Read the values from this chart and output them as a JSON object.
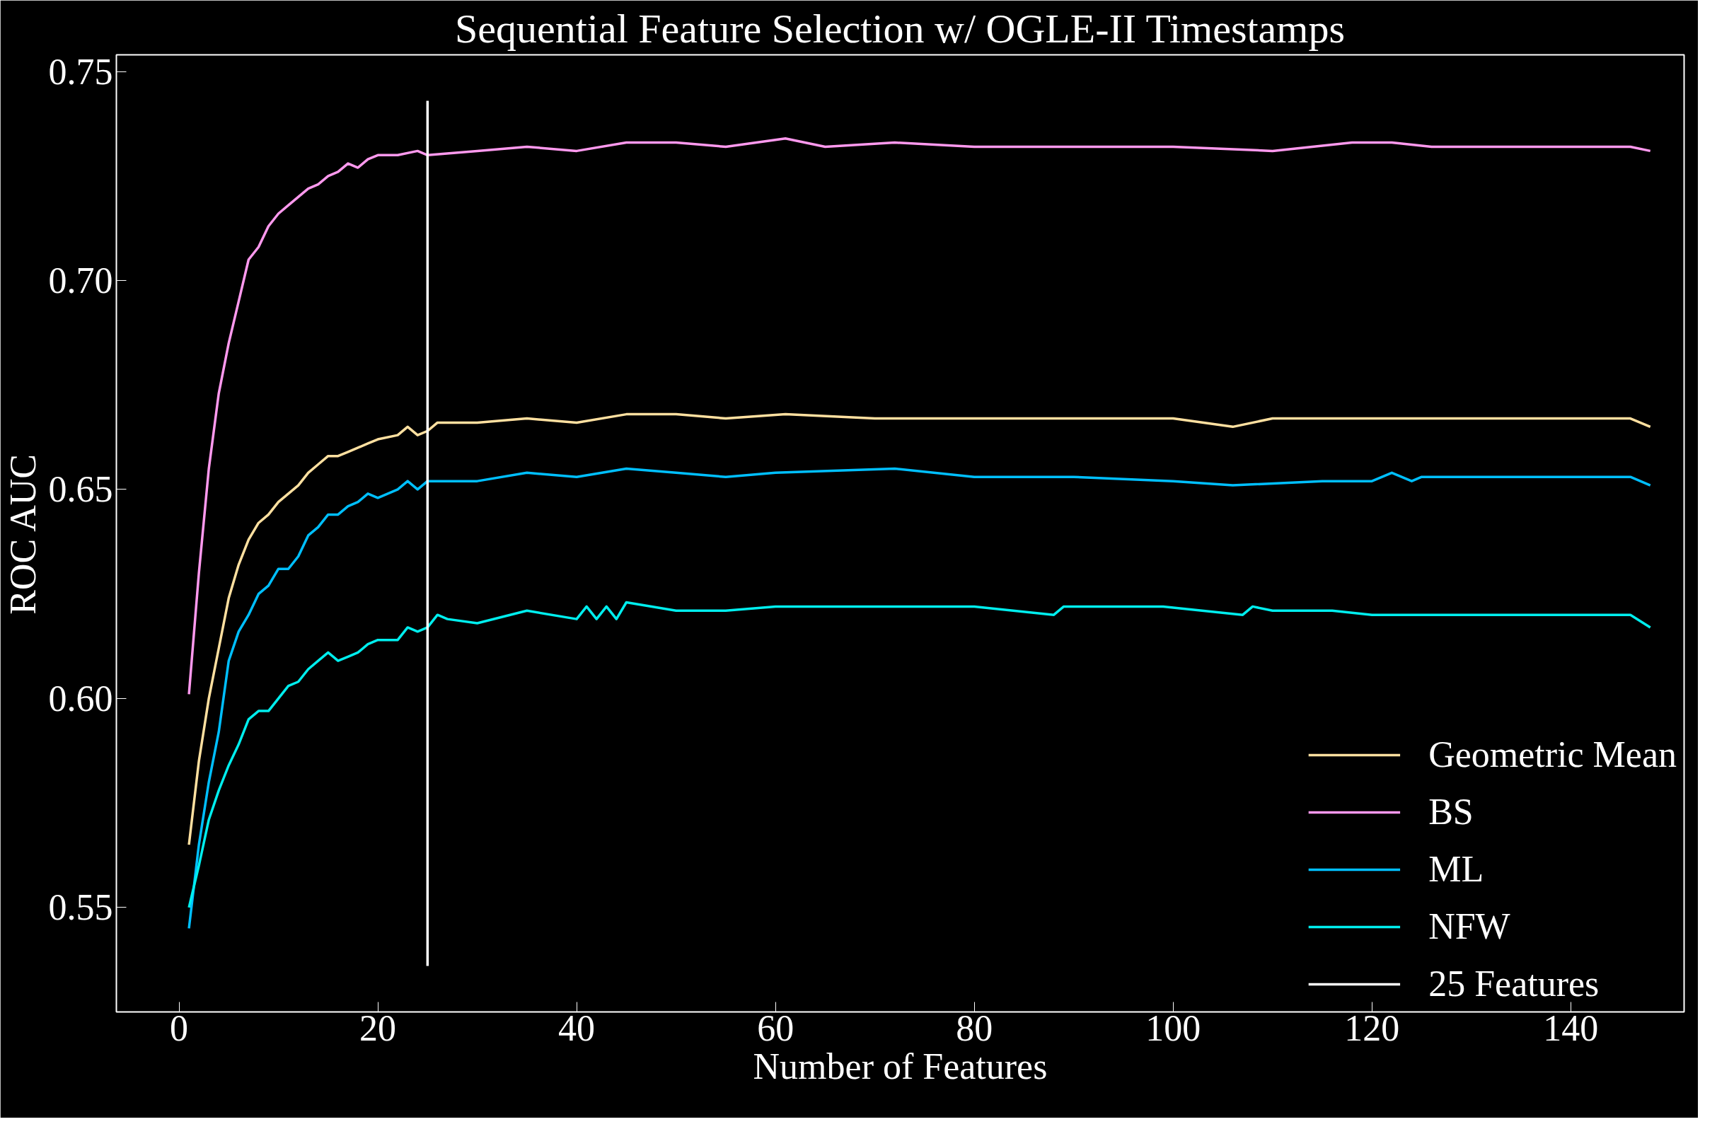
{
  "chart_data": {
    "type": "line",
    "title": "Sequential Feature Selection w/ OGLE-II Timestamps",
    "xlabel": "Number of Features",
    "ylabel": "ROC AUC",
    "xlim": [
      -6.3,
      151.4
    ],
    "ylim": [
      0.525,
      0.754
    ],
    "xticks": [
      0,
      20,
      40,
      60,
      80,
      100,
      120,
      140
    ],
    "yticks": [
      0.55,
      {
        "value": 0.6,
        "label": "0.60"
      },
      0.65,
      {
        "value": 0.7,
        "label": "0.70"
      },
      0.75
    ],
    "grid": false,
    "legend": "bottom right",
    "line_style": "solid",
    "marker": "none",
    "series": [
      {
        "name": "Geometric Mean",
        "color": "#ffe0a0",
        "x": [
          1,
          2,
          3,
          4,
          5,
          6,
          7,
          8,
          9,
          10,
          11,
          12,
          13,
          14,
          15,
          16,
          17,
          18,
          19,
          20,
          22,
          23,
          24,
          25,
          26,
          28,
          30,
          35,
          40,
          45,
          50,
          55,
          61,
          70,
          80,
          90,
          100,
          106,
          110,
          120,
          126,
          146,
          148
        ],
        "values": [
          0.565,
          0.585,
          0.6,
          0.612,
          0.624,
          0.632,
          0.638,
          0.642,
          0.644,
          0.647,
          0.649,
          0.651,
          0.654,
          0.656,
          0.658,
          0.658,
          0.659,
          0.66,
          0.661,
          0.662,
          0.663,
          0.665,
          0.663,
          0.664,
          0.666,
          0.666,
          0.666,
          0.667,
          0.666,
          0.668,
          0.668,
          0.667,
          0.668,
          0.667,
          0.667,
          0.667,
          0.667,
          0.665,
          0.667,
          0.667,
          0.667,
          0.667,
          0.665
        ]
      },
      {
        "name": "BS",
        "color": "#ff99ee",
        "x": [
          1,
          2,
          3,
          4,
          5,
          6,
          7,
          8,
          9,
          10,
          11,
          12,
          13,
          14,
          15,
          16,
          17,
          18,
          19,
          20,
          22,
          24,
          25,
          30,
          35,
          40,
          45,
          50,
          55,
          61,
          65,
          72,
          80,
          90,
          100,
          110,
          118,
          122,
          126,
          146,
          148
        ],
        "values": [
          0.601,
          0.63,
          0.655,
          0.673,
          0.685,
          0.695,
          0.705,
          0.708,
          0.713,
          0.716,
          0.718,
          0.72,
          0.722,
          0.723,
          0.725,
          0.726,
          0.728,
          0.727,
          0.729,
          0.73,
          0.73,
          0.731,
          0.73,
          0.731,
          0.732,
          0.731,
          0.733,
          0.733,
          0.732,
          0.734,
          0.732,
          0.733,
          0.732,
          0.732,
          0.732,
          0.731,
          0.733,
          0.733,
          0.732,
          0.732,
          0.731
        ]
      },
      {
        "name": "ML",
        "color": "#00bfff",
        "x": [
          1,
          2,
          3,
          4,
          5,
          6,
          7,
          8,
          9,
          10,
          11,
          12,
          13,
          14,
          15,
          16,
          17,
          18,
          19,
          20,
          21,
          22,
          23,
          24,
          25,
          26,
          28,
          30,
          35,
          40,
          45,
          50,
          55,
          60,
          72,
          80,
          90,
          100,
          106,
          115,
          120,
          122,
          124,
          125,
          146,
          148
        ],
        "values": [
          0.545,
          0.565,
          0.58,
          0.592,
          0.609,
          0.616,
          0.62,
          0.625,
          0.627,
          0.631,
          0.631,
          0.634,
          0.639,
          0.641,
          0.644,
          0.644,
          0.646,
          0.647,
          0.649,
          0.648,
          0.649,
          0.65,
          0.652,
          0.65,
          0.652,
          0.652,
          0.652,
          0.652,
          0.654,
          0.653,
          0.655,
          0.654,
          0.653,
          0.654,
          0.655,
          0.653,
          0.653,
          0.652,
          0.651,
          0.652,
          0.652,
          0.654,
          0.652,
          0.653,
          0.653,
          0.651
        ]
      },
      {
        "name": "NFW",
        "color": "#00eeee",
        "x": [
          1,
          2,
          3,
          4,
          5,
          6,
          7,
          8,
          9,
          10,
          11,
          12,
          13,
          14,
          15,
          16,
          17,
          18,
          19,
          20,
          22,
          23,
          24,
          25,
          26,
          27,
          30,
          35,
          40,
          41,
          42,
          43,
          44,
          45,
          50,
          55,
          60,
          70,
          80,
          88,
          89,
          99,
          107,
          108,
          110,
          116,
          120,
          126,
          146,
          148
        ],
        "values": [
          0.55,
          0.56,
          0.571,
          0.578,
          0.584,
          0.589,
          0.595,
          0.597,
          0.597,
          0.6,
          0.603,
          0.604,
          0.607,
          0.609,
          0.611,
          0.609,
          0.61,
          0.611,
          0.613,
          0.614,
          0.614,
          0.617,
          0.616,
          0.617,
          0.62,
          0.619,
          0.618,
          0.621,
          0.619,
          0.622,
          0.619,
          0.622,
          0.619,
          0.623,
          0.621,
          0.621,
          0.622,
          0.622,
          0.622,
          0.62,
          0.622,
          0.622,
          0.62,
          0.622,
          0.621,
          0.621,
          0.62,
          0.62,
          0.62,
          0.617
        ]
      },
      {
        "name": "25 Features",
        "color": "#ffffff",
        "x": [
          25,
          25
        ],
        "values": [
          0.536,
          0.743
        ]
      }
    ]
  }
}
